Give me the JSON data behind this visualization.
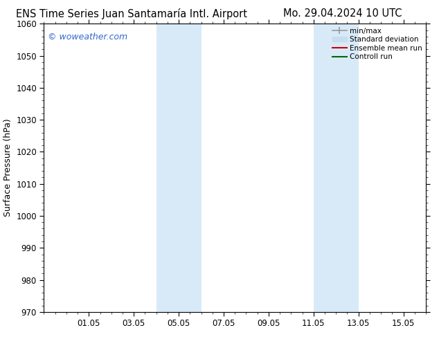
{
  "title_left": "ENS Time Series Juan Santamaría Intl. Airport",
  "title_right": "Mo. 29.04.2024 10 UTC",
  "ylabel": "Surface Pressure (hPa)",
  "ylim": [
    970,
    1060
  ],
  "yticks": [
    970,
    980,
    990,
    1000,
    1010,
    1020,
    1030,
    1040,
    1050,
    1060
  ],
  "xtick_labels": [
    "01.05",
    "03.05",
    "05.05",
    "07.05",
    "09.05",
    "11.05",
    "13.05",
    "15.05"
  ],
  "xtick_days_from_start": [
    2,
    4,
    6,
    8,
    10,
    12,
    14,
    16
  ],
  "xlim_days": [
    0,
    16
  ],
  "total_days": 17,
  "shaded_bands": [
    {
      "xstart_days": 5,
      "xend_days": 7
    },
    {
      "xstart_days": 12,
      "xend_days": 14
    }
  ],
  "shade_color": "#d8eaf8",
  "background_color": "#ffffff",
  "watermark_text": "© woweather.com",
  "watermark_color": "#3366cc",
  "legend_entries": [
    {
      "label": "min/max",
      "color": "#999999",
      "lw": 1.2,
      "type": "errorbar"
    },
    {
      "label": "Standard deviation",
      "color": "#c8dded",
      "lw": 8,
      "type": "patch"
    },
    {
      "label": "Ensemble mean run",
      "color": "#cc0000",
      "lw": 1.5,
      "type": "line"
    },
    {
      "label": "Controll run",
      "color": "#006600",
      "lw": 1.5,
      "type": "line"
    }
  ],
  "spine_color": "#000000",
  "tick_color": "#000000",
  "title_fontsize": 10.5,
  "axis_label_fontsize": 9,
  "tick_fontsize": 8.5,
  "watermark_fontsize": 9,
  "legend_fontsize": 7.5
}
